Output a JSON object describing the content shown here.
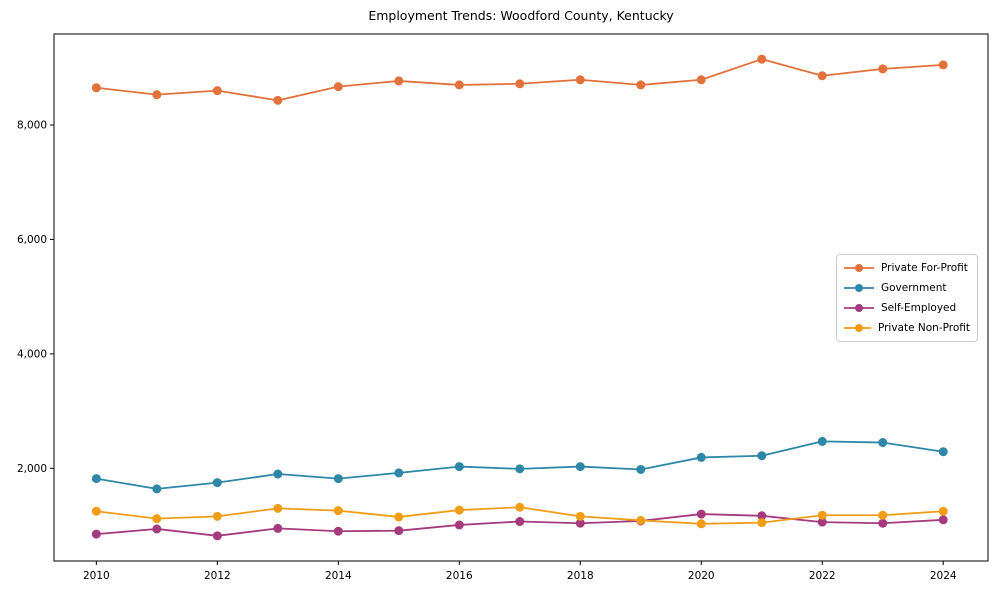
{
  "chart_data": {
    "type": "line",
    "title": "Employment Trends: Woodford County, Kentucky",
    "xlabel": "",
    "ylabel": "",
    "x": [
      2010,
      2011,
      2012,
      2013,
      2014,
      2015,
      2016,
      2017,
      2018,
      2019,
      2020,
      2021,
      2022,
      2023,
      2024
    ],
    "series": [
      {
        "name": "Private For-Profit",
        "color": "#e2713c",
        "values": [
          8650,
          8530,
          8600,
          8430,
          8670,
          8770,
          8700,
          8720,
          8790,
          8700,
          8790,
          9150,
          8860,
          8980,
          9050
        ]
      },
      {
        "name": "Government",
        "color": "#2f87a8",
        "values": [
          1820,
          1640,
          1750,
          1900,
          1820,
          1920,
          2030,
          1990,
          2030,
          1980,
          2190,
          2220,
          2470,
          2450,
          2290
        ]
      },
      {
        "name": "Self-Employed",
        "color": "#a53b7d",
        "values": [
          850,
          940,
          820,
          950,
          900,
          910,
          1010,
          1070,
          1040,
          1080,
          1200,
          1170,
          1060,
          1040,
          1100
        ]
      },
      {
        "name": "Private Non-Profit",
        "color": "#f09d17",
        "values": [
          1250,
          1120,
          1160,
          1300,
          1260,
          1150,
          1270,
          1320,
          1160,
          1090,
          1030,
          1050,
          1180,
          1180,
          1250
        ]
      }
    ],
    "x_ticks": [
      {
        "value": 2010,
        "label": "2010"
      },
      {
        "value": 2012,
        "label": "2012"
      },
      {
        "value": 2014,
        "label": "2014"
      },
      {
        "value": 2016,
        "label": "2016"
      },
      {
        "value": 2018,
        "label": "2018"
      },
      {
        "value": 2020,
        "label": "2020"
      },
      {
        "value": 2022,
        "label": "2022"
      },
      {
        "value": 2024,
        "label": "2024"
      }
    ],
    "y_ticks": [
      {
        "value": 2000,
        "label": "2,000"
      },
      {
        "value": 4000,
        "label": "4,000"
      },
      {
        "value": 6000,
        "label": "6,000"
      },
      {
        "value": 8000,
        "label": "8,000"
      }
    ],
    "xlim": [
      2009.3,
      2024.74
    ],
    "ylim": [
      380,
      9590
    ],
    "grid": false,
    "legend_position": "center-right",
    "axis_color": "#000000"
  }
}
